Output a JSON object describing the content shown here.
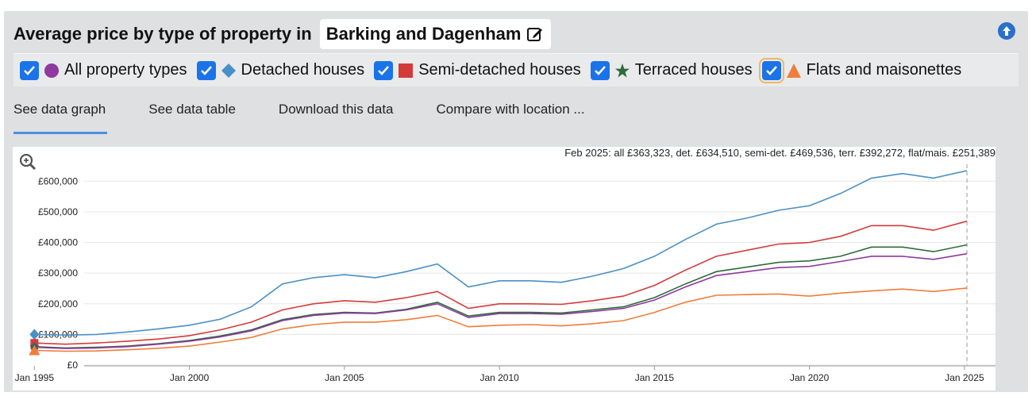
{
  "header": {
    "title": "Average price by type of property in",
    "location": "Barking and Dagenham"
  },
  "legend": [
    {
      "label": "All property types",
      "color": "#8e3a9e",
      "marker": "circle"
    },
    {
      "label": "Detached houses",
      "color": "#4a8fc6",
      "marker": "diamond"
    },
    {
      "label": "Semi-detached houses",
      "color": "#d33b3b",
      "marker": "square"
    },
    {
      "label": "Terraced houses",
      "color": "#2e6b3a",
      "marker": "star"
    },
    {
      "label": "Flats and maisonettes",
      "color": "#ef7d3c",
      "marker": "triangle"
    }
  ],
  "tabs": [
    "See data graph",
    "See data table",
    "Download this data",
    "Compare with location ..."
  ],
  "chart_data": {
    "type": "line",
    "annotation": "Feb 2025: all £363,323, det. £634,510, semi-det. £469,536, terr. £392,272, flat/mais. £251,389",
    "x": [
      1995,
      1996,
      1997,
      1998,
      1999,
      2000,
      2001,
      2002,
      2003,
      2004,
      2005,
      2006,
      2007,
      2008,
      2009,
      2010,
      2011,
      2012,
      2013,
      2014,
      2015,
      2016,
      2017,
      2018,
      2019,
      2020,
      2021,
      2022,
      2023,
      2024,
      2025.08
    ],
    "x_ticks": [
      {
        "v": 1995,
        "label": "Jan 1995"
      },
      {
        "v": 2000,
        "label": "Jan 2000"
      },
      {
        "v": 2005,
        "label": "Jan 2005"
      },
      {
        "v": 2010,
        "label": "Jan 2010"
      },
      {
        "v": 2015,
        "label": "Jan 2015"
      },
      {
        "v": 2020,
        "label": "Jan 2020"
      },
      {
        "v": 2025,
        "label": "Jan 2025"
      }
    ],
    "y_ticks": [
      {
        "v": 0,
        "label": "£0"
      },
      {
        "v": 100000,
        "label": "£100,000"
      },
      {
        "v": 200000,
        "label": "£200,000"
      },
      {
        "v": 300000,
        "label": "£300,000"
      },
      {
        "v": 400000,
        "label": "£400,000"
      },
      {
        "v": 500000,
        "label": "£500,000"
      },
      {
        "v": 600000,
        "label": "£600,000"
      }
    ],
    "xlim": [
      1994.3,
      2026.0
    ],
    "ylim": [
      0,
      650000
    ],
    "series": [
      {
        "name": "Detached houses",
        "color": "#4a8fc6",
        "values": [
          100000,
          98000,
          100000,
          108000,
          118000,
          130000,
          150000,
          190000,
          265000,
          285000,
          295000,
          285000,
          305000,
          330000,
          255000,
          275000,
          275000,
          270000,
          290000,
          315000,
          355000,
          410000,
          460000,
          480000,
          505000,
          520000,
          560000,
          610000,
          625000,
          610000,
          634510
        ]
      },
      {
        "name": "Semi-detached houses",
        "color": "#d33b3b",
        "values": [
          72000,
          68000,
          72000,
          78000,
          85000,
          96000,
          115000,
          140000,
          180000,
          200000,
          210000,
          205000,
          220000,
          240000,
          185000,
          200000,
          200000,
          198000,
          210000,
          225000,
          260000,
          310000,
          355000,
          375000,
          395000,
          400000,
          420000,
          455000,
          455000,
          440000,
          469536
        ]
      },
      {
        "name": "Terraced houses",
        "color": "#2e6b3a",
        "values": [
          60000,
          56000,
          58000,
          62000,
          70000,
          80000,
          95000,
          115000,
          148000,
          165000,
          172000,
          170000,
          182000,
          205000,
          160000,
          172000,
          172000,
          170000,
          180000,
          190000,
          220000,
          265000,
          305000,
          320000,
          335000,
          340000,
          355000,
          385000,
          385000,
          370000,
          392272
        ]
      },
      {
        "name": "All property types",
        "color": "#8e3a9e",
        "values": [
          58000,
          54000,
          56000,
          60000,
          68000,
          78000,
          92000,
          112000,
          145000,
          162000,
          170000,
          168000,
          180000,
          200000,
          155000,
          168000,
          168000,
          166000,
          175000,
          185000,
          212000,
          255000,
          292000,
          305000,
          318000,
          322000,
          338000,
          355000,
          355000,
          345000,
          363323
        ]
      },
      {
        "name": "Flats and maisonettes",
        "color": "#ef7d3c",
        "values": [
          48000,
          45000,
          46000,
          50000,
          55000,
          62000,
          75000,
          90000,
          118000,
          132000,
          140000,
          140000,
          148000,
          162000,
          125000,
          130000,
          132000,
          128000,
          135000,
          145000,
          172000,
          205000,
          228000,
          230000,
          232000,
          225000,
          235000,
          242000,
          248000,
          240000,
          251389
        ]
      }
    ]
  }
}
